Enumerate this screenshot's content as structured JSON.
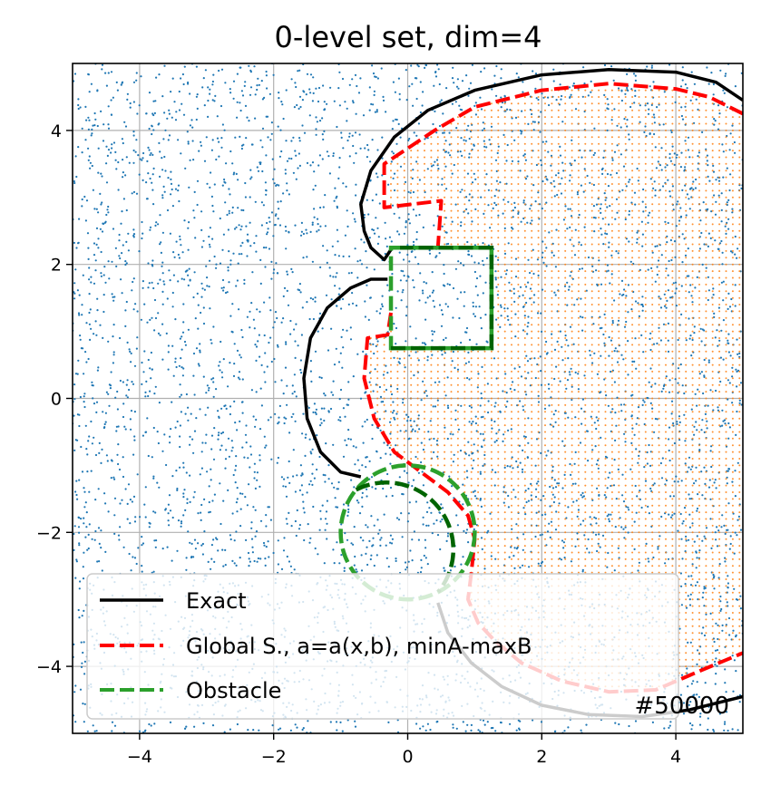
{
  "chart_data": {
    "type": "scatter",
    "title": "0-level set, dim=4",
    "xlabel": "",
    "ylabel": "",
    "xlim": [
      -5,
      5
    ],
    "ylim": [
      -5,
      5
    ],
    "xticks": [
      -4,
      -2,
      0,
      2,
      4
    ],
    "yticks": [
      -4,
      -2,
      0,
      2,
      4
    ],
    "xtick_labels": [
      "−4",
      "−2",
      "0",
      "2",
      "4"
    ],
    "ytick_labels": [
      "−4",
      "−2",
      "0",
      "2",
      "4"
    ],
    "grid": true,
    "legend_position": "lower-left",
    "annotation": "#50000",
    "colors": {
      "scatter_points": "#1f77b4",
      "inside_points": "#ff7f0e",
      "exact": "#000000",
      "global": "#ff0000",
      "obstacle_light": "#2ca02c",
      "obstacle_dark": "#006400",
      "grid": "#b0b0b0"
    },
    "series": [
      {
        "name": "Exact",
        "style": "solid",
        "segments": [
          [
            [
              5.0,
              4.45
            ],
            [
              4.6,
              4.72
            ],
            [
              4.0,
              4.87
            ],
            [
              3.0,
              4.91
            ],
            [
              2.0,
              4.83
            ],
            [
              1.0,
              4.6
            ],
            [
              0.3,
              4.3
            ],
            [
              -0.2,
              3.9
            ],
            [
              -0.55,
              3.4
            ],
            [
              -0.7,
              2.9
            ],
            [
              -0.65,
              2.5
            ],
            [
              -0.55,
              2.25
            ],
            [
              -0.35,
              2.07
            ],
            [
              -0.25,
              2.22
            ]
          ],
          [
            [
              -0.3,
              1.78
            ],
            [
              -0.55,
              1.78
            ],
            [
              -0.85,
              1.65
            ],
            [
              -1.2,
              1.35
            ],
            [
              -1.45,
              0.9
            ],
            [
              -1.55,
              0.3
            ],
            [
              -1.5,
              -0.3
            ],
            [
              -1.3,
              -0.8
            ],
            [
              -1.0,
              -1.1
            ],
            [
              -0.7,
              -1.17
            ]
          ],
          [
            [
              0.45,
              -3.05
            ],
            [
              0.6,
              -3.5
            ],
            [
              0.95,
              -3.95
            ],
            [
              1.4,
              -4.3
            ],
            [
              2.0,
              -4.58
            ],
            [
              2.7,
              -4.72
            ],
            [
              3.5,
              -4.75
            ],
            [
              4.2,
              -4.65
            ],
            [
              5.0,
              -4.45
            ]
          ]
        ]
      },
      {
        "name": "Global S., a=a(x,b), minA-maxB",
        "style": "dashed",
        "segments": [
          [
            [
              5.0,
              4.25
            ],
            [
              4.5,
              4.5
            ],
            [
              4.0,
              4.62
            ],
            [
              3.0,
              4.7
            ],
            [
              2.0,
              4.6
            ],
            [
              1.0,
              4.35
            ],
            [
              0.4,
              4.0
            ],
            [
              -0.05,
              3.7
            ],
            [
              -0.35,
              3.5
            ],
            [
              -0.35,
              2.85
            ],
            [
              0.5,
              2.95
            ],
            [
              0.45,
              2.25
            ]
          ],
          [
            [
              -0.25,
              1.28
            ],
            [
              -0.3,
              0.95
            ],
            [
              -0.6,
              0.9
            ],
            [
              -0.65,
              0.3
            ],
            [
              -0.5,
              -0.3
            ],
            [
              -0.2,
              -0.8
            ],
            [
              0.2,
              -1.1
            ],
            [
              0.6,
              -1.4
            ],
            [
              0.9,
              -1.75
            ],
            [
              1.0,
              -2.1
            ],
            [
              0.95,
              -2.6
            ],
            [
              0.9,
              -3.0
            ],
            [
              1.05,
              -3.35
            ],
            [
              1.3,
              -3.62
            ],
            [
              1.7,
              -3.95
            ],
            [
              2.3,
              -4.22
            ],
            [
              3.0,
              -4.38
            ],
            [
              3.7,
              -4.35
            ],
            [
              4.4,
              -4.05
            ],
            [
              5.0,
              -3.8
            ]
          ]
        ]
      },
      {
        "name": "Obstacle",
        "style": "dashed",
        "shapes": [
          {
            "kind": "rectangle",
            "x": [
              -0.25,
              1.25
            ],
            "y": [
              0.75,
              2.25
            ]
          },
          {
            "kind": "circle",
            "center": [
              0,
              -2
            ],
            "radius": 1
          }
        ]
      }
    ]
  }
}
